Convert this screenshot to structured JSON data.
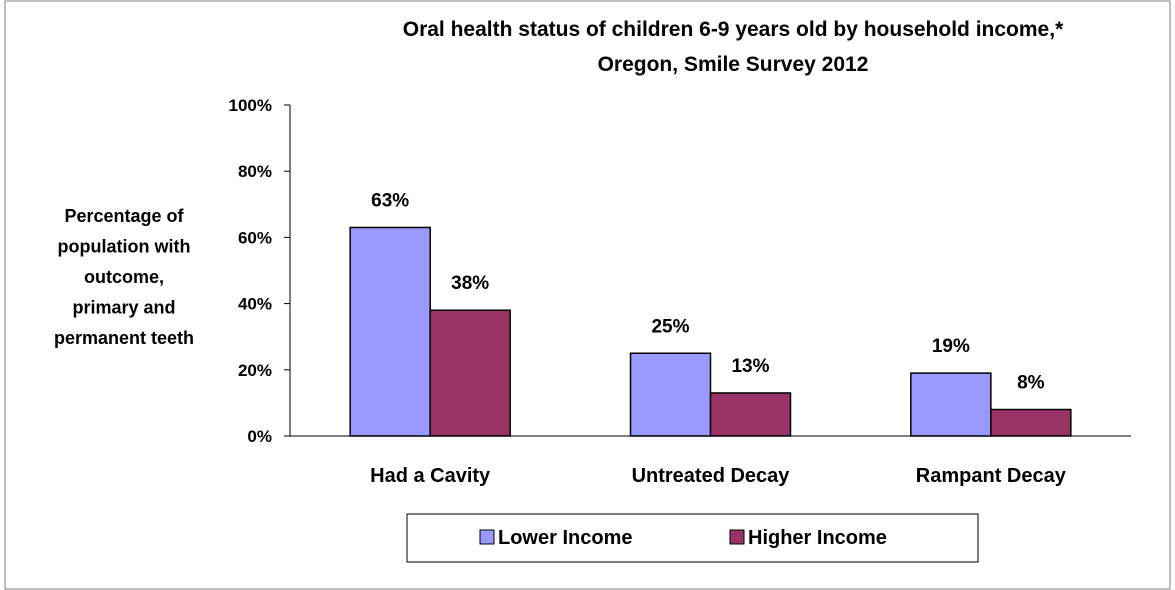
{
  "chart_data": {
    "type": "bar",
    "title": "Oral health status of children 6-9 years old by household income,*",
    "subtitle": "Oregon,  Smile Survey 2012",
    "ylabel_lines": [
      "Percentage of",
      "population with",
      "outcome,",
      "primary and",
      "permanent teeth"
    ],
    "categories": [
      "Had a Cavity",
      "Untreated Decay",
      "Rampant Decay"
    ],
    "series": [
      {
        "name": "Lower Income",
        "color": "#9999ff",
        "values": [
          63,
          25,
          19
        ],
        "labels": [
          "63%",
          "25%",
          "19%"
        ]
      },
      {
        "name": "Higher Income",
        "color": "#993366",
        "values": [
          38,
          13,
          8
        ],
        "labels": [
          "38%",
          "13%",
          "8%"
        ]
      }
    ],
    "ylim": [
      0,
      100
    ],
    "yticks": [
      {
        "value": 0,
        "label": "0%"
      },
      {
        "value": 20,
        "label": "20%"
      },
      {
        "value": 40,
        "label": "40%"
      },
      {
        "value": 60,
        "label": "60%"
      },
      {
        "value": 80,
        "label": "80%"
      },
      {
        "value": 100,
        "label": "100%"
      }
    ],
    "grid": false,
    "legend_position": "bottom"
  }
}
